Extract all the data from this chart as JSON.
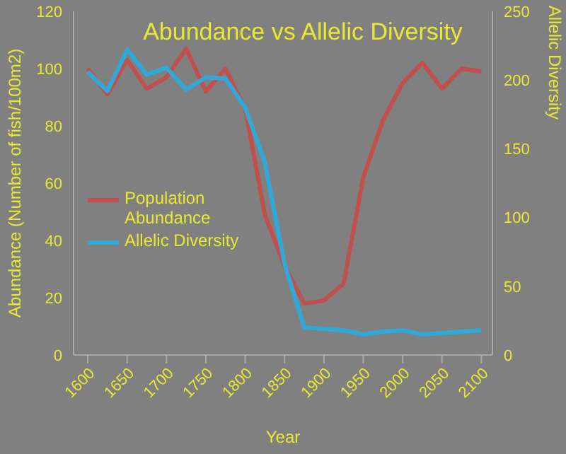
{
  "chart_data": {
    "type": "line",
    "title": "Abundance vs Allelic Diversity",
    "xlabel": "Year",
    "ylabel": "Abundance (Number of fish/100m2)",
    "y2label": "Allelic Diversity",
    "x": [
      1600,
      1625,
      1650,
      1675,
      1700,
      1725,
      1750,
      1775,
      1800,
      1825,
      1850,
      1875,
      1900,
      1925,
      1950,
      1975,
      2000,
      2025,
      2050,
      2075,
      2100
    ],
    "series": [
      {
        "name": "Population Abundance",
        "color": "#c0504d",
        "values": [
          100,
          91,
          103,
          93,
          97,
          107,
          92,
          100,
          86,
          49,
          31,
          18,
          19,
          25,
          62,
          82,
          95,
          102,
          93,
          100,
          99
        ]
      },
      {
        "name": "Allelic Diversity",
        "color": "#31a9d8",
        "axis": "y2",
        "values": [
          206,
          192,
          222,
          204,
          209,
          193,
          202,
          201,
          180,
          140,
          66,
          20,
          19,
          18,
          15,
          17,
          18,
          15,
          16,
          17,
          18
        ]
      }
    ],
    "xlim": [
      1582,
      2114
    ],
    "xticks": [
      1600,
      1650,
      1700,
      1750,
      1800,
      1850,
      1900,
      1950,
      2000,
      2050,
      2100
    ],
    "ylim": [
      0,
      120
    ],
    "yticks": [
      0,
      20,
      40,
      60,
      80,
      100,
      120
    ],
    "y2lim": [
      0,
      250
    ],
    "y2ticks": [
      0,
      50,
      100,
      150,
      200,
      250
    ],
    "legend": "left",
    "grid": false,
    "marker": "none",
    "line_style": "solid"
  }
}
